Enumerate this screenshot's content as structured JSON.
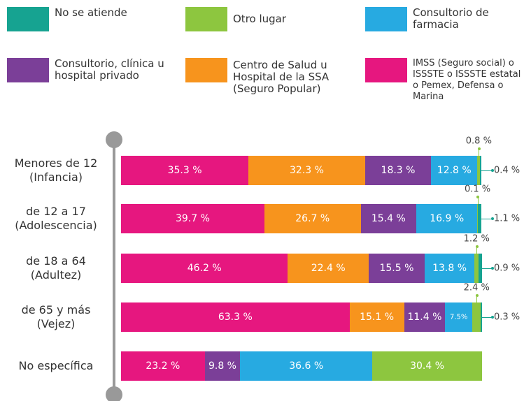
{
  "chart_data": {
    "type": "bar",
    "orientation": "horizontal",
    "stacked": true,
    "categories": [
      "Menores de 12 (Infancia)",
      "de 12 a 17 (Adolescencia)",
      "de 18 a 64 (Adultez)",
      "de 65 y más (Vejez)",
      "No específica"
    ],
    "xlim": [
      0,
      100
    ],
    "series": [
      {
        "name": "IMSS (Seguro social) o ISSSTE o ISSSTE estatal o Pemex, Defensa o Marina",
        "color": "#e6177f",
        "values": [
          35.3,
          39.7,
          46.2,
          63.3,
          23.2
        ],
        "value_labels": [
          "35.3 %",
          "39.7 %",
          "46.2 %",
          "63.3 %",
          "23.2 %"
        ]
      },
      {
        "name": "Centro de Salud u Hospital de la SSA (Seguro Popular)",
        "color": "#f7941d",
        "values": [
          32.3,
          26.7,
          22.4,
          15.1,
          null
        ],
        "value_labels": [
          "32.3 %",
          "26.7 %",
          "22.4 %",
          "15.1 %",
          null
        ]
      },
      {
        "name": "Consultorio, clínica u hospital privado",
        "color": "#7b3f98",
        "values": [
          18.3,
          15.4,
          15.5,
          11.4,
          9.8
        ],
        "value_labels": [
          "18.3 %",
          "15.4 %",
          "15.5 %",
          "11.4 %",
          "9.8 %"
        ]
      },
      {
        "name": "Consultorio de farmacia",
        "color": "#27aae1",
        "values": [
          12.8,
          16.9,
          13.8,
          7.5,
          36.6
        ],
        "value_labels": [
          "12.8 %",
          "16.9 %",
          "13.8 %",
          "7.5%",
          "36.6 %"
        ]
      },
      {
        "name": "Otro lugar",
        "color": "#8dc63f",
        "values": [
          0.8,
          0.1,
          1.2,
          2.4,
          30.4
        ],
        "value_labels": [
          "0.8 %",
          "0.1 %",
          "1.2 %",
          "2.4 %",
          "30.4 %"
        ]
      },
      {
        "name": "No se atiende",
        "color": "#16a391",
        "values": [
          0.4,
          1.1,
          0.9,
          0.3,
          null
        ],
        "value_labels": [
          "0.4 %",
          "1.1 %",
          "0.9 %",
          "0.3 %",
          null
        ]
      }
    ]
  }
}
